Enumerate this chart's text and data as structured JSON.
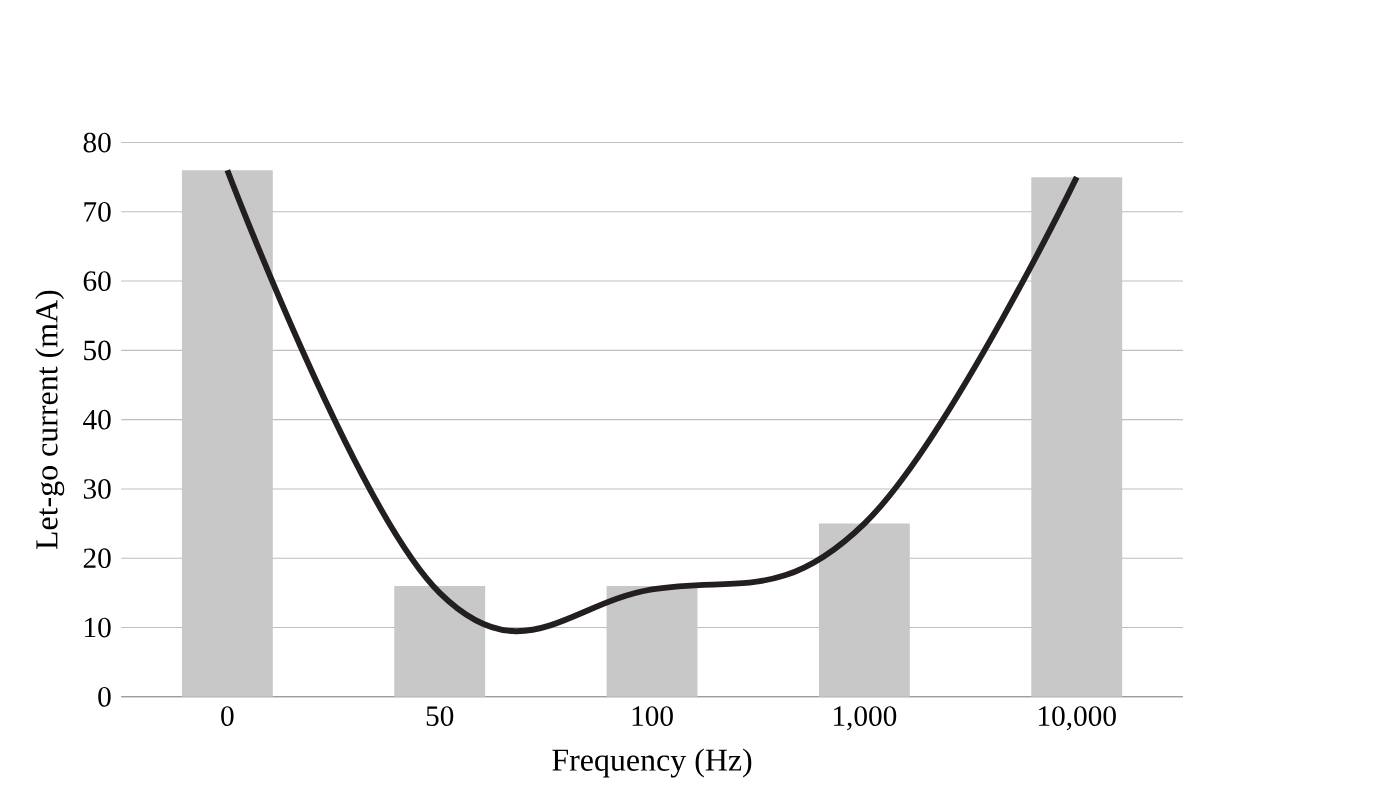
{
  "chart_data": {
    "type": "bar",
    "xlabel": "Frequency (Hz)",
    "ylabel": "Let-go current (mA)",
    "categories": [
      "0",
      "50",
      "100",
      "1,000",
      "10,000"
    ],
    "ylim": [
      0,
      80
    ],
    "yticks": [
      0,
      10,
      20,
      30,
      40,
      50,
      60,
      70,
      80
    ],
    "grid": "y",
    "series": [
      {
        "color": "#c8c8c8",
        "values": [
          76,
          16,
          16,
          25,
          75
        ]
      },
      {
        "type": "line",
        "color": "#231f20",
        "values": [
          76,
          15,
          15.5,
          25,
          75
        ]
      }
    ]
  }
}
